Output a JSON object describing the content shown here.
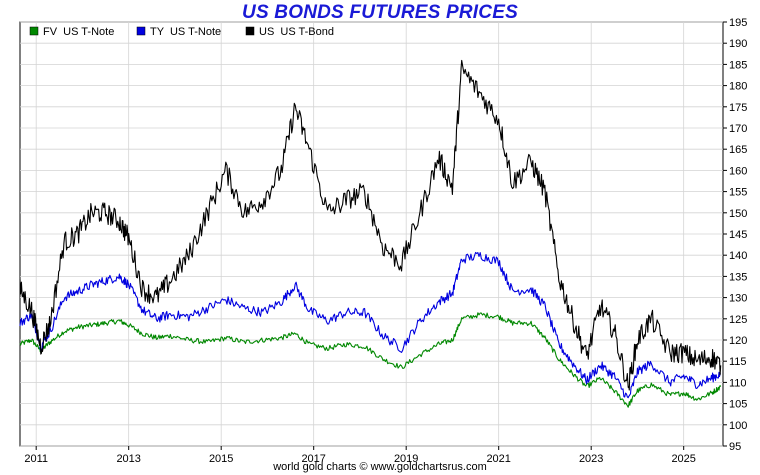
{
  "title": "US BONDS FUTURES PRICES",
  "footer": "world gold charts © www.goldchartsrus.com",
  "chart_data": {
    "type": "line",
    "title": "US BONDS FUTURES PRICES",
    "xlabel": "",
    "ylabel": "",
    "ylim": [
      95,
      195
    ],
    "y_ticks": [
      95,
      100,
      105,
      110,
      115,
      120,
      125,
      130,
      135,
      140,
      145,
      150,
      155,
      160,
      165,
      170,
      175,
      180,
      185,
      190,
      195
    ],
    "x_ticks": [
      "2011",
      "2013",
      "2015",
      "2017",
      "2019",
      "2021",
      "2023",
      "2025"
    ],
    "x_range": [
      2010.65,
      2025.85
    ],
    "grid": true,
    "legend_position": "top-left",
    "series": [
      {
        "name": "FV  US T-Note",
        "color": "#008800",
        "x": [
          2010.65,
          2010.9,
          2011.1,
          2011.3,
          2011.6,
          2011.9,
          2012.2,
          2012.5,
          2012.8,
          2013.0,
          2013.3,
          2013.6,
          2013.9,
          2014.3,
          2014.7,
          2015.1,
          2015.5,
          2015.9,
          2016.3,
          2016.6,
          2016.9,
          2017.3,
          2017.7,
          2018.1,
          2018.5,
          2018.9,
          2019.3,
          2019.7,
          2020.0,
          2020.2,
          2020.6,
          2021.0,
          2021.3,
          2021.7,
          2022.0,
          2022.3,
          2022.6,
          2022.9,
          2023.2,
          2023.5,
          2023.8,
          2024.0,
          2024.3,
          2024.7,
          2025.0,
          2025.3,
          2025.6,
          2025.8
        ],
        "values": [
          119,
          120,
          117.5,
          119.5,
          122,
          123,
          123.5,
          124,
          124.5,
          123.5,
          121.5,
          120.5,
          121,
          120,
          119.5,
          120.5,
          119.5,
          120,
          120.5,
          121.5,
          119,
          118,
          119,
          118.5,
          115.5,
          113.5,
          116.5,
          119,
          120,
          125,
          126,
          125.5,
          124,
          124,
          120.5,
          115.5,
          112,
          109,
          111,
          108,
          104.5,
          108,
          109.5,
          107,
          107.5,
          106,
          107.5,
          109
        ]
      },
      {
        "name": "TY  US T-Note",
        "color": "#0000e0",
        "x": [
          2010.65,
          2010.9,
          2011.1,
          2011.3,
          2011.6,
          2011.9,
          2012.2,
          2012.5,
          2012.8,
          2013.0,
          2013.3,
          2013.6,
          2013.9,
          2014.3,
          2014.7,
          2015.1,
          2015.5,
          2015.9,
          2016.3,
          2016.6,
          2016.9,
          2017.3,
          2017.7,
          2018.1,
          2018.5,
          2018.9,
          2019.3,
          2019.7,
          2020.0,
          2020.2,
          2020.6,
          2021.0,
          2021.3,
          2021.7,
          2022.0,
          2022.3,
          2022.6,
          2022.9,
          2023.2,
          2023.5,
          2023.8,
          2024.0,
          2024.3,
          2024.7,
          2025.0,
          2025.3,
          2025.6,
          2025.8
        ],
        "values": [
          124,
          126,
          118.5,
          122,
          130,
          131.5,
          133,
          134,
          135,
          133,
          127,
          125,
          126,
          125.5,
          127.5,
          129.5,
          127.5,
          126.5,
          129,
          133,
          127,
          124.5,
          126.5,
          126.5,
          121,
          118,
          124.5,
          129,
          131,
          139,
          140,
          138.5,
          131.5,
          132,
          128,
          119,
          114.5,
          110.5,
          114,
          111.5,
          106,
          112.5,
          114.5,
          110,
          111.5,
          109.5,
          111,
          112
        ]
      },
      {
        "name": "US  US T-Bond",
        "color": "#000000",
        "x": [
          2010.65,
          2010.9,
          2011.1,
          2011.3,
          2011.6,
          2011.9,
          2012.2,
          2012.5,
          2012.8,
          2013.0,
          2013.3,
          2013.6,
          2013.9,
          2014.3,
          2014.7,
          2015.1,
          2015.5,
          2015.9,
          2016.3,
          2016.6,
          2016.9,
          2017.3,
          2017.7,
          2018.1,
          2018.5,
          2018.9,
          2019.3,
          2019.7,
          2020.0,
          2020.2,
          2020.6,
          2021.0,
          2021.3,
          2021.7,
          2022.0,
          2022.3,
          2022.6,
          2022.9,
          2023.2,
          2023.5,
          2023.8,
          2024.0,
          2024.3,
          2024.7,
          2025.0,
          2025.3,
          2025.6,
          2025.8
        ],
        "values": [
          132,
          127,
          118.5,
          124,
          143,
          145,
          150,
          150,
          148,
          144,
          132,
          130,
          134,
          140,
          150,
          160,
          150,
          153,
          160,
          175,
          165,
          150,
          153,
          155,
          142,
          138,
          150,
          163,
          156,
          184,
          178,
          172,
          157,
          162,
          155,
          135,
          125,
          116,
          128,
          122,
          109,
          120,
          125,
          117,
          117,
          115,
          116,
          114
        ]
      }
    ]
  }
}
